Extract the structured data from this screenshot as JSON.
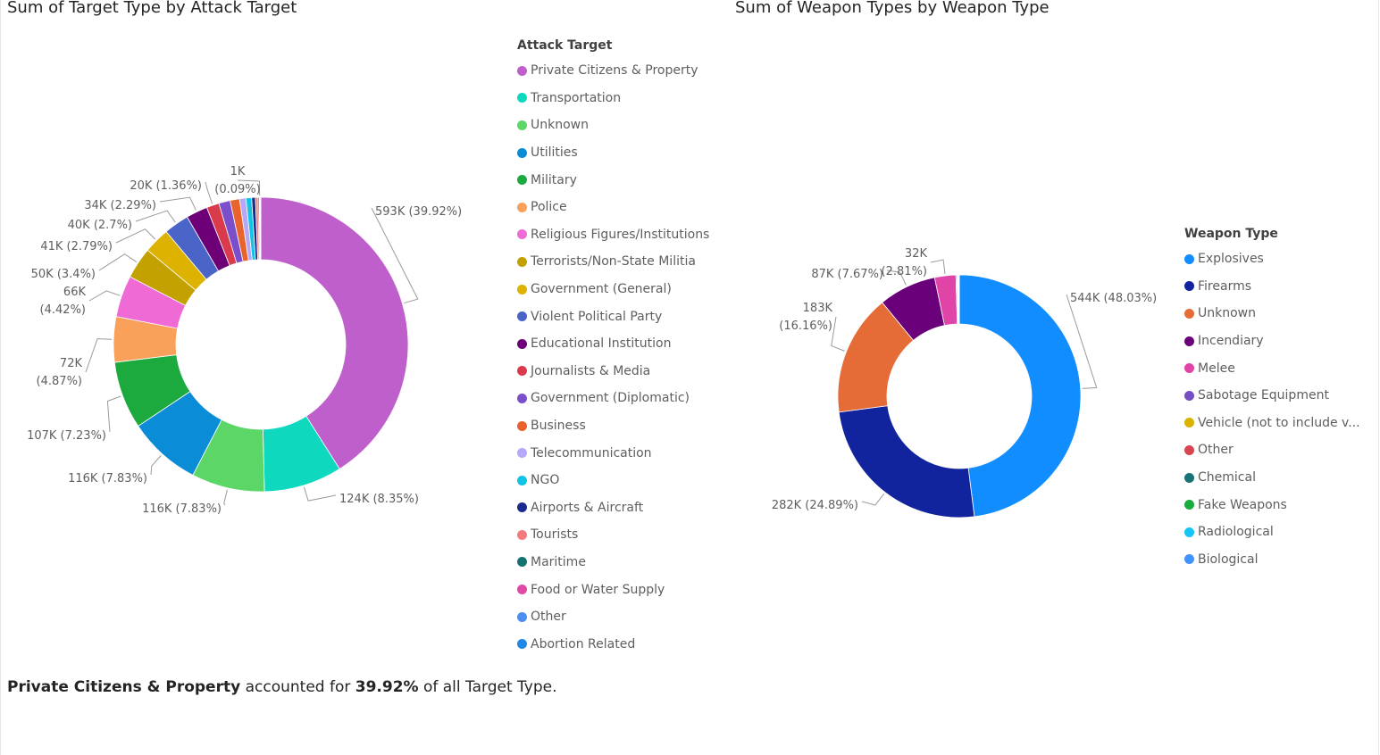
{
  "insight": {
    "highlight": "Private Citizens & Property",
    "text1": " accounted for ",
    "value": "39.92%",
    "text2": " of all Target Type."
  },
  "chart_data": [
    {
      "type": "donut",
      "title": "Sum of Target Type by Attack Target",
      "legend_title": "Attack Target",
      "legend_position": "right",
      "slices": [
        {
          "name": "Private Citizens & Property",
          "value": 593,
          "pct": 39.92,
          "color": "#BF5FCC",
          "label": "593K (39.92%)"
        },
        {
          "name": "Transportation",
          "value": 124,
          "pct": 8.35,
          "color": "#0ED9BF",
          "label": "124K (8.35%)"
        },
        {
          "name": "Unknown",
          "value": 116,
          "pct": 7.83,
          "color": "#5CD767",
          "label": "116K (7.83%)"
        },
        {
          "name": "Utilities",
          "value": 116,
          "pct": 7.83,
          "color": "#0A8CD6",
          "label": "116K (7.83%)"
        },
        {
          "name": "Military",
          "value": 107,
          "pct": 7.23,
          "color": "#1CAA3F",
          "label": "107K (7.23%)"
        },
        {
          "name": "Police",
          "value": 72,
          "pct": 4.87,
          "color": "#F9A05A",
          "label": "72K (4.87%)"
        },
        {
          "name": "Religious Figures/Institutions",
          "value": 66,
          "pct": 4.42,
          "color": "#F06AD6",
          "label": "66K (4.42%)"
        },
        {
          "name": "Terrorists/Non-State Militia",
          "value": 50,
          "pct": 3.4,
          "color": "#C2A100",
          "label": "50K (3.4%)"
        },
        {
          "name": "Government (General)",
          "value": 41,
          "pct": 2.79,
          "color": "#DDB200",
          "label": "41K (2.79%)"
        },
        {
          "name": "Violent Political Party",
          "value": 40,
          "pct": 2.7,
          "color": "#4A64C8",
          "label": "40K (2.7%)"
        },
        {
          "name": "Educational Institution",
          "value": 34,
          "pct": 2.29,
          "color": "#6E0077",
          "label": "34K (2.29%)"
        },
        {
          "name": "Journalists & Media",
          "value": 20,
          "pct": 1.36,
          "color": "#DA3B4C",
          "label": "20K (1.36%)"
        },
        {
          "name": "Government (Diplomatic)",
          "value": 18,
          "pct": 1.2,
          "color": "#7B4FCB",
          "label": ""
        },
        {
          "name": "Business",
          "value": 15,
          "pct": 1.0,
          "color": "#E8642C",
          "label": ""
        },
        {
          "name": "Telecommunication",
          "value": 10,
          "pct": 0.7,
          "color": "#B6A7F8",
          "label": ""
        },
        {
          "name": "NGO",
          "value": 9,
          "pct": 0.6,
          "color": "#12C4E4",
          "label": ""
        },
        {
          "name": "Airports & Aircraft",
          "value": 6,
          "pct": 0.4,
          "color": "#1A2A8E",
          "label": ""
        },
        {
          "name": "Tourists",
          "value": 4,
          "pct": 0.3,
          "color": "#F47B7B",
          "label": ""
        },
        {
          "name": "Maritime",
          "value": 2,
          "pct": 0.15,
          "color": "#147270",
          "label": ""
        },
        {
          "name": "Food or Water Supply",
          "value": 1,
          "pct": 0.09,
          "color": "#E04AA6",
          "label": "1K (0.09%)"
        },
        {
          "name": "Other",
          "value": 1,
          "pct": 0.08,
          "color": "#4C8FF0",
          "label": ""
        },
        {
          "name": "Abortion Related",
          "value": 0.4,
          "pct": 0.03,
          "color": "#1E88E5",
          "label": ""
        }
      ]
    },
    {
      "type": "donut",
      "title": "Sum of Weapon Types by Weapon Type",
      "legend_title": "Weapon Type",
      "legend_position": "right",
      "slices": [
        {
          "name": "Explosives",
          "value": 544,
          "pct": 48.03,
          "color": "#118DFF",
          "label": "544K (48.03%)"
        },
        {
          "name": "Firearms",
          "value": 282,
          "pct": 24.89,
          "color": "#12239E",
          "label": "282K (24.89%)"
        },
        {
          "name": "Unknown",
          "value": 183,
          "pct": 16.16,
          "color": "#E66C37",
          "label": "183K (16.16%)"
        },
        {
          "name": "Incendiary",
          "value": 87,
          "pct": 7.67,
          "color": "#6B007B",
          "label": "87K (7.67%)"
        },
        {
          "name": "Melee",
          "value": 32,
          "pct": 2.81,
          "color": "#E044A7",
          "label": "32K (2.81%)"
        },
        {
          "name": "Sabotage Equipment",
          "value": 1.5,
          "pct": 0.13,
          "color": "#744EC2",
          "label": ""
        },
        {
          "name": "Vehicle (not to include v...",
          "value": 1.3,
          "pct": 0.11,
          "color": "#D9B300",
          "label": ""
        },
        {
          "name": "Other",
          "value": 1,
          "pct": 0.09,
          "color": "#D64550",
          "label": ""
        },
        {
          "name": "Chemical",
          "value": 0.5,
          "pct": 0.05,
          "color": "#197278",
          "label": ""
        },
        {
          "name": "Fake Weapons",
          "value": 0.4,
          "pct": 0.03,
          "color": "#1AAB40",
          "label": ""
        },
        {
          "name": "Radiological",
          "value": 0.2,
          "pct": 0.02,
          "color": "#15C6F4",
          "label": ""
        },
        {
          "name": "Biological",
          "value": 0.1,
          "pct": 0.01,
          "color": "#4092FF",
          "label": ""
        }
      ]
    }
  ]
}
